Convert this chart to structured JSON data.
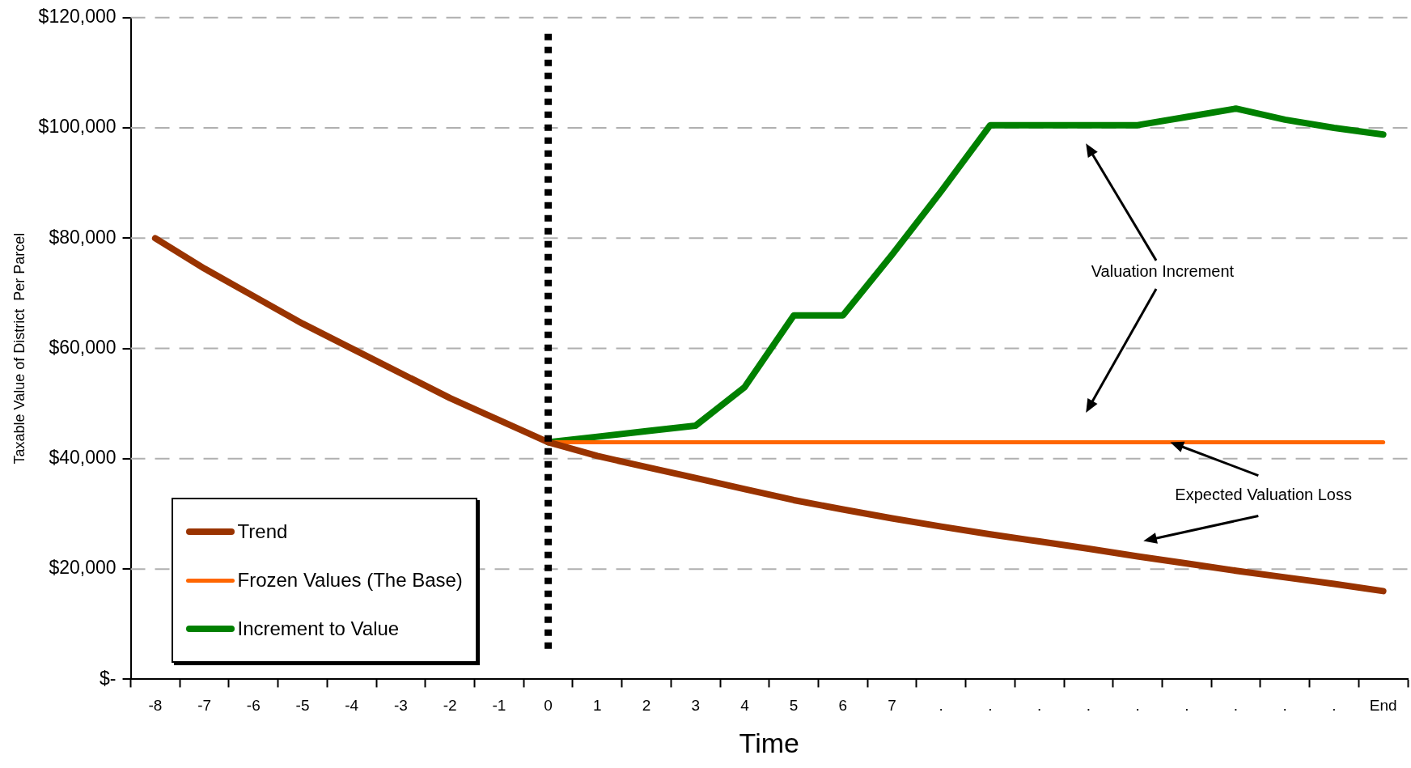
{
  "chart_data": {
    "type": "line",
    "xlabel": "Time",
    "ylabel": "Taxable Value of District  Per Parcel",
    "categories": [
      "-8",
      "-7",
      "-6",
      "-5",
      "-4",
      "-3",
      "-2",
      "-1",
      "0",
      "1",
      "2",
      "3",
      "4",
      "5",
      "6",
      "7",
      ".",
      ".",
      ".",
      ".",
      ".",
      ".",
      ".",
      ".",
      ".",
      "End"
    ],
    "series": [
      {
        "name": "Trend",
        "color": "#993300",
        "values": [
          80000,
          74500,
          69500,
          64500,
          60000,
          55500,
          51000,
          47000,
          43000,
          40500,
          38500,
          36500,
          34500,
          32500,
          30800,
          29200,
          27700,
          26300,
          25000,
          23700,
          22300,
          21000,
          19700,
          18500,
          17300,
          16000
        ]
      },
      {
        "name": "Frozen Values (The Base)",
        "color": "#ff6600",
        "values": [
          null,
          null,
          null,
          null,
          null,
          null,
          null,
          null,
          43000,
          43000,
          43000,
          43000,
          43000,
          43000,
          43000,
          43000,
          43000,
          43000,
          43000,
          43000,
          43000,
          43000,
          43000,
          43000,
          43000,
          43000
        ]
      },
      {
        "name": "Increment to Value",
        "color": "#008000",
        "values": [
          null,
          null,
          null,
          null,
          null,
          null,
          null,
          null,
          43000,
          44000,
          45000,
          46000,
          53000,
          66000,
          66000,
          77000,
          88500,
          100500,
          100500,
          100500,
          100500,
          102000,
          103500,
          101500,
          100000,
          98800
        ]
      }
    ],
    "ylim": [
      0,
      120000
    ],
    "yticks": [
      {
        "value": 0,
        "label": "$-"
      },
      {
        "value": 20000,
        "label": "$20,000"
      },
      {
        "value": 40000,
        "label": "$40,000"
      },
      {
        "value": 60000,
        "label": "$60,000"
      },
      {
        "value": 80000,
        "label": "$80,000"
      },
      {
        "value": 100000,
        "label": "$100,000"
      },
      {
        "value": 120000,
        "label": "$120,000"
      }
    ],
    "grid": "y",
    "legend": "bottom left",
    "marker": "none",
    "line_style": "solid",
    "ref_lines": [
      {
        "axis": "x",
        "value": "0",
        "color": "#000000",
        "line_style": "dotted"
      }
    ],
    "annotations": [
      "Valuation Increment",
      {
        "text": "Expected Valuation Loss",
        "y": 43000
      }
    ]
  }
}
